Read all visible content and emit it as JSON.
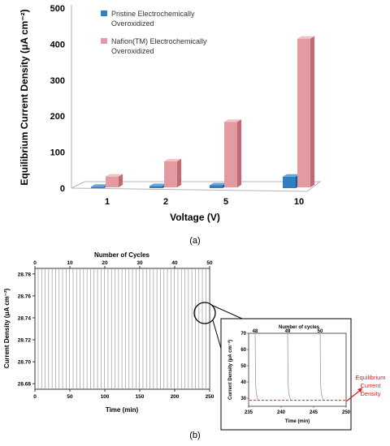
{
  "colors": {
    "pristine": "#2f7fc2",
    "nafion": "#e39aa0",
    "cycle_line": "#9a9a9a",
    "equilibrium": "#e02020"
  },
  "panel_a": {
    "label": "(a)",
    "chart_data": {
      "type": "bar",
      "style": "3d",
      "categories": [
        "1",
        "2",
        "5",
        "10"
      ],
      "series": [
        {
          "name": "Pristine Electrochemically Overoxidized",
          "values": [
            4,
            6,
            8,
            32
          ]
        },
        {
          "name": "Nafion(TM) Electrochemically Overoxidized",
          "values": [
            30,
            72,
            182,
            413
          ]
        }
      ],
      "xlabel": "Voltage (V)",
      "ylabel": "Equilibrium Current Density (μA cm⁻²)",
      "ylim": [
        0,
        500
      ],
      "yticks": [
        0,
        100,
        200,
        300,
        400,
        500
      ],
      "legend": "top-left",
      "grid": false
    }
  },
  "panel_b": {
    "label": "(b)",
    "chart_data": {
      "type": "line",
      "description_pattern": "sawtooth",
      "x_range_time": [
        0,
        250
      ],
      "x_range_cycles": [
        0,
        50
      ],
      "ylim": [
        28.675,
        28.785
      ],
      "yticks": [
        "28.68",
        "28.70",
        "28.72",
        "28.74",
        "28.76",
        "28.78"
      ],
      "xticks_bottom": [
        "0",
        "50",
        "100",
        "150",
        "200",
        "250"
      ],
      "xticks_top": [
        "0",
        "10",
        "20",
        "30",
        "40",
        "50"
      ],
      "xlabel_bottom": "Time (min)",
      "xlabel_top": "Number of Cycles",
      "ylabel": "Current Density (μA cm⁻²)",
      "cycle_period_min": 5,
      "cycles": 50
    },
    "inset": {
      "chart_data": {
        "type": "line",
        "x_range_time": [
          235,
          250
        ],
        "ylim": [
          25,
          70
        ],
        "yticks": [
          "30",
          "40",
          "50",
          "60",
          "70"
        ],
        "xticks": [
          "235",
          "240",
          "245",
          "250"
        ],
        "top_ticks": [
          "48",
          "49",
          "50"
        ],
        "xlabel": "Time (min)",
        "xlabel_top": "Number of cycles",
        "ylabel": "Current Density (μA cm⁻²)",
        "spike_times": [
          236,
          241,
          246
        ],
        "baseline": 28.7
      },
      "annotation": "Equilibrium Current Density"
    }
  }
}
